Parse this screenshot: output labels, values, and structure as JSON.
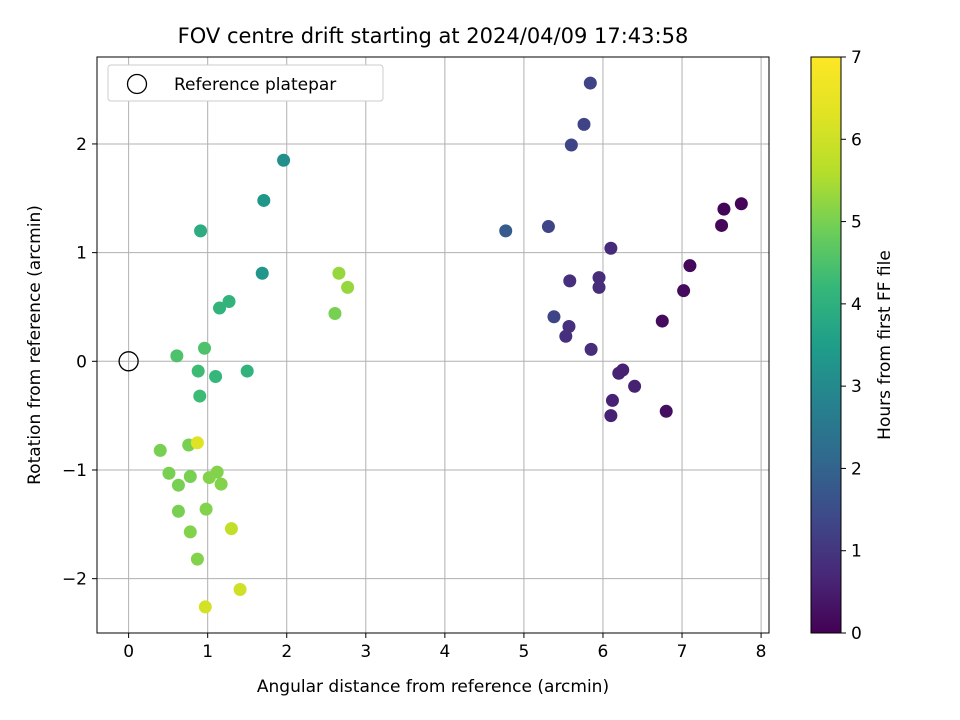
{
  "chart_data": {
    "type": "scatter",
    "title": "FOV centre drift starting at 2024/04/09 17:43:58",
    "xlabel": "Angular distance from reference (arcmin)",
    "ylabel": "Rotation from reference (arcmin)",
    "xlim": [
      -0.4,
      8.1
    ],
    "ylim": [
      -2.5,
      2.8
    ],
    "xticks": [
      0,
      1,
      2,
      3,
      4,
      5,
      6,
      7,
      8
    ],
    "xtick_labels": [
      "0",
      "1",
      "2",
      "3",
      "4",
      "5",
      "6",
      "7",
      "8"
    ],
    "yticks": [
      -2,
      -1,
      0,
      1,
      2
    ],
    "ytick_labels": [
      "−2",
      "−1",
      "0",
      "1",
      "2"
    ],
    "grid": true,
    "legend": {
      "position": "top-left",
      "entries": [
        "Reference platepar"
      ]
    },
    "reference_point": {
      "x": 0,
      "y": 0
    },
    "colorbar": {
      "label": "Hours from first FF file",
      "colormap": "viridis",
      "range": [
        0,
        7
      ],
      "ticks": [
        0,
        1,
        2,
        3,
        4,
        5,
        6,
        7
      ],
      "tick_labels": [
        "0",
        "1",
        "2",
        "3",
        "4",
        "5",
        "6",
        "7"
      ]
    },
    "points": [
      {
        "x": 7.75,
        "y": 1.45,
        "c": 0.05
      },
      {
        "x": 7.53,
        "y": 1.4,
        "c": 0.05
      },
      {
        "x": 7.5,
        "y": 1.25,
        "c": 0.1
      },
      {
        "x": 7.1,
        "y": 0.88,
        "c": 0.15
      },
      {
        "x": 7.02,
        "y": 0.65,
        "c": 0.2
      },
      {
        "x": 6.75,
        "y": 0.37,
        "c": 0.2
      },
      {
        "x": 6.8,
        "y": -0.46,
        "c": 0.25
      },
      {
        "x": 6.4,
        "y": -0.23,
        "c": 0.6
      },
      {
        "x": 6.25,
        "y": -0.08,
        "c": 0.6
      },
      {
        "x": 6.2,
        "y": -0.11,
        "c": 0.6
      },
      {
        "x": 6.12,
        "y": -0.36,
        "c": 0.6
      },
      {
        "x": 6.1,
        "y": -0.5,
        "c": 0.6
      },
      {
        "x": 6.1,
        "y": 1.04,
        "c": 0.75
      },
      {
        "x": 5.95,
        "y": 0.77,
        "c": 0.8
      },
      {
        "x": 5.95,
        "y": 0.68,
        "c": 0.8
      },
      {
        "x": 5.85,
        "y": 0.11,
        "c": 0.8
      },
      {
        "x": 5.58,
        "y": 0.74,
        "c": 0.85
      },
      {
        "x": 5.57,
        "y": 0.32,
        "c": 0.85
      },
      {
        "x": 5.53,
        "y": 0.23,
        "c": 0.85
      },
      {
        "x": 5.38,
        "y": 0.41,
        "c": 1.3
      },
      {
        "x": 5.31,
        "y": 1.24,
        "c": 1.3
      },
      {
        "x": 5.6,
        "y": 1.99,
        "c": 1.3
      },
      {
        "x": 5.76,
        "y": 2.18,
        "c": 1.3
      },
      {
        "x": 5.84,
        "y": 2.56,
        "c": 1.3
      },
      {
        "x": 4.77,
        "y": 1.2,
        "c": 1.8
      },
      {
        "x": 1.96,
        "y": 1.85,
        "c": 3.1
      },
      {
        "x": 1.71,
        "y": 1.48,
        "c": 3.3
      },
      {
        "x": 1.69,
        "y": 0.81,
        "c": 3.3
      },
      {
        "x": 0.91,
        "y": 1.2,
        "c": 3.9
      },
      {
        "x": 1.27,
        "y": 0.55,
        "c": 4.1
      },
      {
        "x": 1.15,
        "y": 0.49,
        "c": 4.1
      },
      {
        "x": 1.5,
        "y": -0.09,
        "c": 4.1
      },
      {
        "x": 1.1,
        "y": -0.14,
        "c": 4.2
      },
      {
        "x": 0.88,
        "y": -0.09,
        "c": 4.3
      },
      {
        "x": 0.9,
        "y": -0.32,
        "c": 4.3
      },
      {
        "x": 0.96,
        "y": 0.12,
        "c": 4.5
      },
      {
        "x": 0.61,
        "y": 0.05,
        "c": 4.5
      },
      {
        "x": 2.61,
        "y": 0.44,
        "c": 5.0
      },
      {
        "x": 2.66,
        "y": 0.81,
        "c": 5.3
      },
      {
        "x": 2.77,
        "y": 0.68,
        "c": 5.3
      },
      {
        "x": 0.4,
        "y": -0.82,
        "c": 5.0
      },
      {
        "x": 0.76,
        "y": -0.77,
        "c": 5.0
      },
      {
        "x": 0.51,
        "y": -1.03,
        "c": 5.0
      },
      {
        "x": 0.63,
        "y": -1.14,
        "c": 5.0
      },
      {
        "x": 0.78,
        "y": -1.06,
        "c": 5.0
      },
      {
        "x": 1.02,
        "y": -1.07,
        "c": 5.1
      },
      {
        "x": 1.12,
        "y": -1.02,
        "c": 5.1
      },
      {
        "x": 1.17,
        "y": -1.13,
        "c": 5.1
      },
      {
        "x": 0.63,
        "y": -1.38,
        "c": 5.0
      },
      {
        "x": 0.98,
        "y": -1.36,
        "c": 5.1
      },
      {
        "x": 0.78,
        "y": -1.57,
        "c": 5.1
      },
      {
        "x": 0.87,
        "y": -1.82,
        "c": 5.1
      },
      {
        "x": 0.87,
        "y": -0.75,
        "c": 6.3
      },
      {
        "x": 1.3,
        "y": -1.54,
        "c": 5.8
      },
      {
        "x": 1.41,
        "y": -2.1,
        "c": 6.0
      },
      {
        "x": 0.97,
        "y": -2.26,
        "c": 6.1
      }
    ]
  }
}
